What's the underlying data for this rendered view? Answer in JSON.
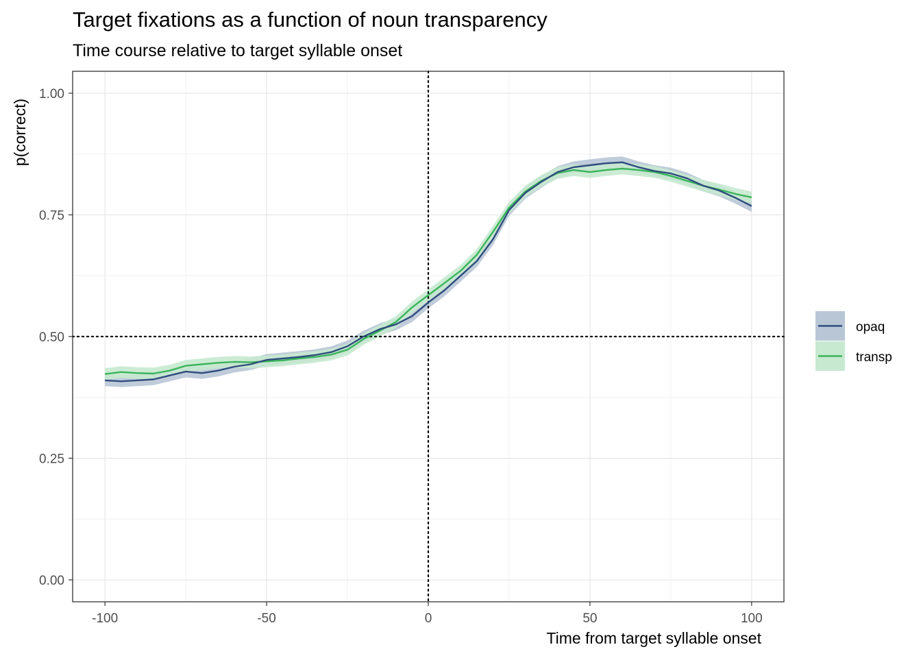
{
  "chart_data": {
    "type": "line",
    "title": "Target fixations as a function of noun transparency",
    "subtitle": "Time course relative to target syllable onset",
    "xlabel": "Time from target syllable onset",
    "ylabel": "p(correct)",
    "xlim": [
      -110,
      110
    ],
    "ylim": [
      -0.045,
      1.045
    ],
    "x_ticks": [
      -100,
      -50,
      0,
      50,
      100
    ],
    "x_tick_labels": [
      "-100",
      "-50",
      "0",
      "50",
      "100"
    ],
    "y_ticks": [
      0,
      0.25,
      0.5,
      0.75,
      1
    ],
    "y_tick_labels": [
      "0.00",
      "0.25",
      "0.50",
      "0.75",
      "1.00"
    ],
    "reference_lines": {
      "x": 0,
      "y": 0.5,
      "style": "dotted"
    },
    "grid": true,
    "legend_position": "right",
    "ribbon": "confidence band around each series",
    "x": [
      -100,
      -95,
      -90,
      -85,
      -80,
      -75,
      -70,
      -65,
      -60,
      -55,
      -50,
      -45,
      -40,
      -35,
      -30,
      -25,
      -20,
      -15,
      -10,
      -5,
      0,
      5,
      10,
      15,
      20,
      25,
      30,
      35,
      40,
      45,
      50,
      55,
      60,
      65,
      70,
      75,
      80,
      85,
      90,
      95,
      100
    ],
    "series": [
      {
        "name": "opaq",
        "color": "#2e4c7e",
        "band_color": "#b9c6d6",
        "band_halfwidth": 0.012,
        "values": [
          0.41,
          0.408,
          0.41,
          0.412,
          0.42,
          0.428,
          0.425,
          0.43,
          0.438,
          0.443,
          0.452,
          0.455,
          0.458,
          0.462,
          0.468,
          0.48,
          0.5,
          0.515,
          0.525,
          0.542,
          0.57,
          0.595,
          0.625,
          0.655,
          0.7,
          0.76,
          0.795,
          0.818,
          0.838,
          0.848,
          0.852,
          0.856,
          0.858,
          0.848,
          0.84,
          0.835,
          0.825,
          0.81,
          0.8,
          0.785,
          0.768
        ]
      },
      {
        "name": "transp",
        "color": "#3ab45a",
        "band_color": "#c6e9cf",
        "band_halfwidth": 0.012,
        "values": [
          0.423,
          0.427,
          0.425,
          0.424,
          0.43,
          0.44,
          0.443,
          0.446,
          0.448,
          0.447,
          0.449,
          0.451,
          0.455,
          0.458,
          0.463,
          0.473,
          0.495,
          0.512,
          0.53,
          0.56,
          0.585,
          0.61,
          0.635,
          0.668,
          0.715,
          0.765,
          0.798,
          0.82,
          0.836,
          0.842,
          0.838,
          0.842,
          0.845,
          0.842,
          0.838,
          0.83,
          0.82,
          0.81,
          0.802,
          0.793,
          0.786
        ]
      }
    ]
  }
}
